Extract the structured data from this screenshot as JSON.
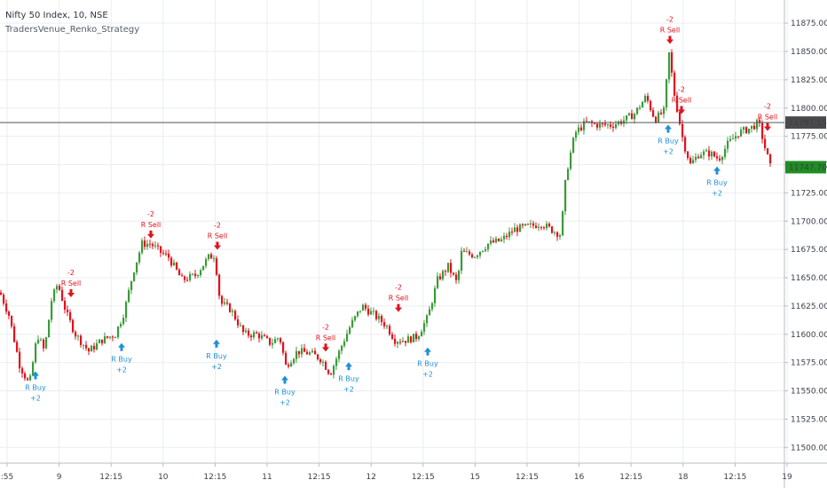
{
  "header": {
    "symbol_line": "Nifty 50 Index, 10, NSE",
    "indicator_line": "TradersVenue_Renko_Strategy"
  },
  "colors": {
    "up": "#3c9a3a",
    "down": "#e0121c",
    "buy_signal": "#1f8fd6",
    "sell_signal": "#e0121c",
    "grid": "#e9edf2",
    "price_line": "#555555",
    "last_price_bg": "#1e8e22",
    "crosshair_bg": "#4a4a4a"
  },
  "chart_data": {
    "type": "candlestick",
    "title": "Nifty 50 Index, 10, NSE",
    "ylim": [
      11490,
      11890
    ],
    "y_ticks": [
      "11500.00",
      "11525.00",
      "11550.00",
      "11575.00",
      "11600.00",
      "11625.00",
      "11650.00",
      "11675.00",
      "11700.00",
      "11725.00",
      "11750.00",
      "11775.00",
      "11800.00",
      "11825.00",
      "11850.00",
      "11875.00"
    ],
    "x_ticks": [
      ":55",
      "9",
      "12:15",
      "10",
      "12:15",
      "11",
      "12:15",
      "12",
      "12:15",
      "15",
      "12:15",
      "16",
      "12:15",
      "18",
      "12:15",
      "19"
    ],
    "path": [
      [
        0,
        11637
      ],
      [
        10,
        11617
      ],
      [
        22,
        11573
      ],
      [
        33,
        11555
      ],
      [
        42,
        11600
      ],
      [
        50,
        11585
      ],
      [
        58,
        11630
      ],
      [
        65,
        11645
      ],
      [
        75,
        11618
      ],
      [
        85,
        11600
      ],
      [
        100,
        11585
      ],
      [
        115,
        11595
      ],
      [
        130,
        11600
      ],
      [
        140,
        11620
      ],
      [
        150,
        11655
      ],
      [
        160,
        11680
      ],
      [
        170,
        11680
      ],
      [
        180,
        11673
      ],
      [
        190,
        11668
      ],
      [
        205,
        11648
      ],
      [
        220,
        11652
      ],
      [
        235,
        11668
      ],
      [
        242,
        11670
      ],
      [
        248,
        11628
      ],
      [
        260,
        11622
      ],
      [
        275,
        11600
      ],
      [
        290,
        11600
      ],
      [
        305,
        11592
      ],
      [
        315,
        11598
      ],
      [
        322,
        11572
      ],
      [
        335,
        11585
      ],
      [
        350,
        11583
      ],
      [
        362,
        11578
      ],
      [
        372,
        11565
      ],
      [
        385,
        11590
      ],
      [
        395,
        11608
      ],
      [
        408,
        11625
      ],
      [
        420,
        11618
      ],
      [
        435,
        11608
      ],
      [
        445,
        11595
      ],
      [
        458,
        11595
      ],
      [
        470,
        11598
      ],
      [
        482,
        11615
      ],
      [
        493,
        11648
      ],
      [
        505,
        11660
      ],
      [
        515,
        11645
      ],
      [
        520,
        11672
      ],
      [
        535,
        11670
      ],
      [
        550,
        11680
      ],
      [
        565,
        11683
      ],
      [
        580,
        11693
      ],
      [
        595,
        11695
      ],
      [
        610,
        11698
      ],
      [
        620,
        11693
      ],
      [
        632,
        11688
      ],
      [
        638,
        11742
      ],
      [
        648,
        11778
      ],
      [
        660,
        11787
      ],
      [
        675,
        11785
      ],
      [
        690,
        11785
      ],
      [
        705,
        11790
      ],
      [
        715,
        11795
      ],
      [
        728,
        11810
      ],
      [
        738,
        11790
      ],
      [
        748,
        11797
      ],
      [
        754,
        11848
      ],
      [
        760,
        11812
      ],
      [
        770,
        11770
      ],
      [
        778,
        11750
      ],
      [
        788,
        11760
      ],
      [
        800,
        11760
      ],
      [
        810,
        11755
      ],
      [
        820,
        11768
      ],
      [
        832,
        11778
      ],
      [
        845,
        11782
      ],
      [
        855,
        11787
      ],
      [
        862,
        11765
      ],
      [
        868,
        11748
      ]
    ],
    "last_price": "11747.70",
    "crosshair_price": "11787.15",
    "crosshair_price_value": 11787.15,
    "last_price_value": 11747.7,
    "signals": [
      {
        "type": "buy",
        "label": "R Buy",
        "qty": "+2",
        "x": 40,
        "price": 11572
      },
      {
        "type": "sell",
        "label": "R Sell",
        "qty": "-2",
        "x": 80,
        "price": 11628
      },
      {
        "type": "buy",
        "label": "R Buy",
        "qty": "+2",
        "x": 137,
        "price": 11597
      },
      {
        "type": "sell",
        "label": "R Sell",
        "qty": "-2",
        "x": 170,
        "price": 11680
      },
      {
        "type": "sell",
        "label": "R Sell",
        "qty": "-2",
        "x": 245,
        "price": 11670
      },
      {
        "type": "buy",
        "label": "R Buy",
        "qty": "+2",
        "x": 244,
        "price": 11600
      },
      {
        "type": "buy",
        "label": "R Buy",
        "qty": "+2",
        "x": 321,
        "price": 11568
      },
      {
        "type": "sell",
        "label": "R Sell",
        "qty": "-2",
        "x": 367,
        "price": 11580
      },
      {
        "type": "buy",
        "label": "R Buy",
        "qty": "+2",
        "x": 393,
        "price": 11580
      },
      {
        "type": "sell",
        "label": "R Sell",
        "qty": "-2",
        "x": 449,
        "price": 11615
      },
      {
        "type": "buy",
        "label": "R Buy",
        "qty": "+2",
        "x": 482,
        "price": 11593
      },
      {
        "type": "sell",
        "label": "R Sell",
        "qty": "-2",
        "x": 755,
        "price": 11852
      },
      {
        "type": "buy",
        "label": "R Buy",
        "qty": "+2",
        "x": 753,
        "price": 11790
      },
      {
        "type": "sell",
        "label": "R Sell",
        "qty": "-2",
        "x": 768,
        "price": 11790
      },
      {
        "type": "buy",
        "label": "R Buy",
        "qty": "+2",
        "x": 808,
        "price": 11753
      },
      {
        "type": "sell",
        "label": "R Sell",
        "qty": "-2",
        "x": 865,
        "price": 11775
      }
    ]
  }
}
